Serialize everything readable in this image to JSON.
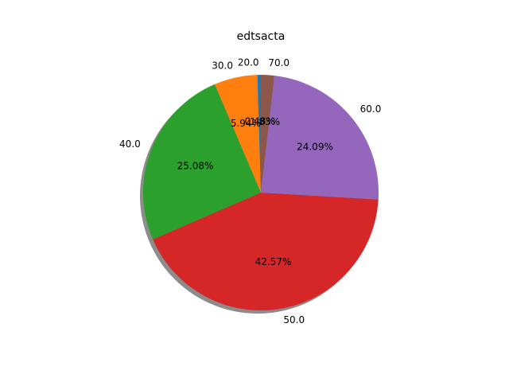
{
  "chart_data": {
    "type": "pie",
    "title": "edtsacta",
    "labels": [
      "20.0",
      "30.0",
      "40.0",
      "50.0",
      "60.0",
      "70.0"
    ],
    "values": [
      0.48,
      5.94,
      25.08,
      42.57,
      24.09,
      1.83
    ],
    "percent_labels": [
      "0.48%",
      "5.94%",
      "25.08%",
      "42.57%",
      "24.09%",
      "1.83%"
    ],
    "colors": [
      "#1f77b4",
      "#ff7f0e",
      "#2ca02c",
      "#d62728",
      "#9467bd",
      "#8c564b"
    ],
    "start_angle_deg": 90,
    "direction": "counterclockwise",
    "shadow": true
  }
}
